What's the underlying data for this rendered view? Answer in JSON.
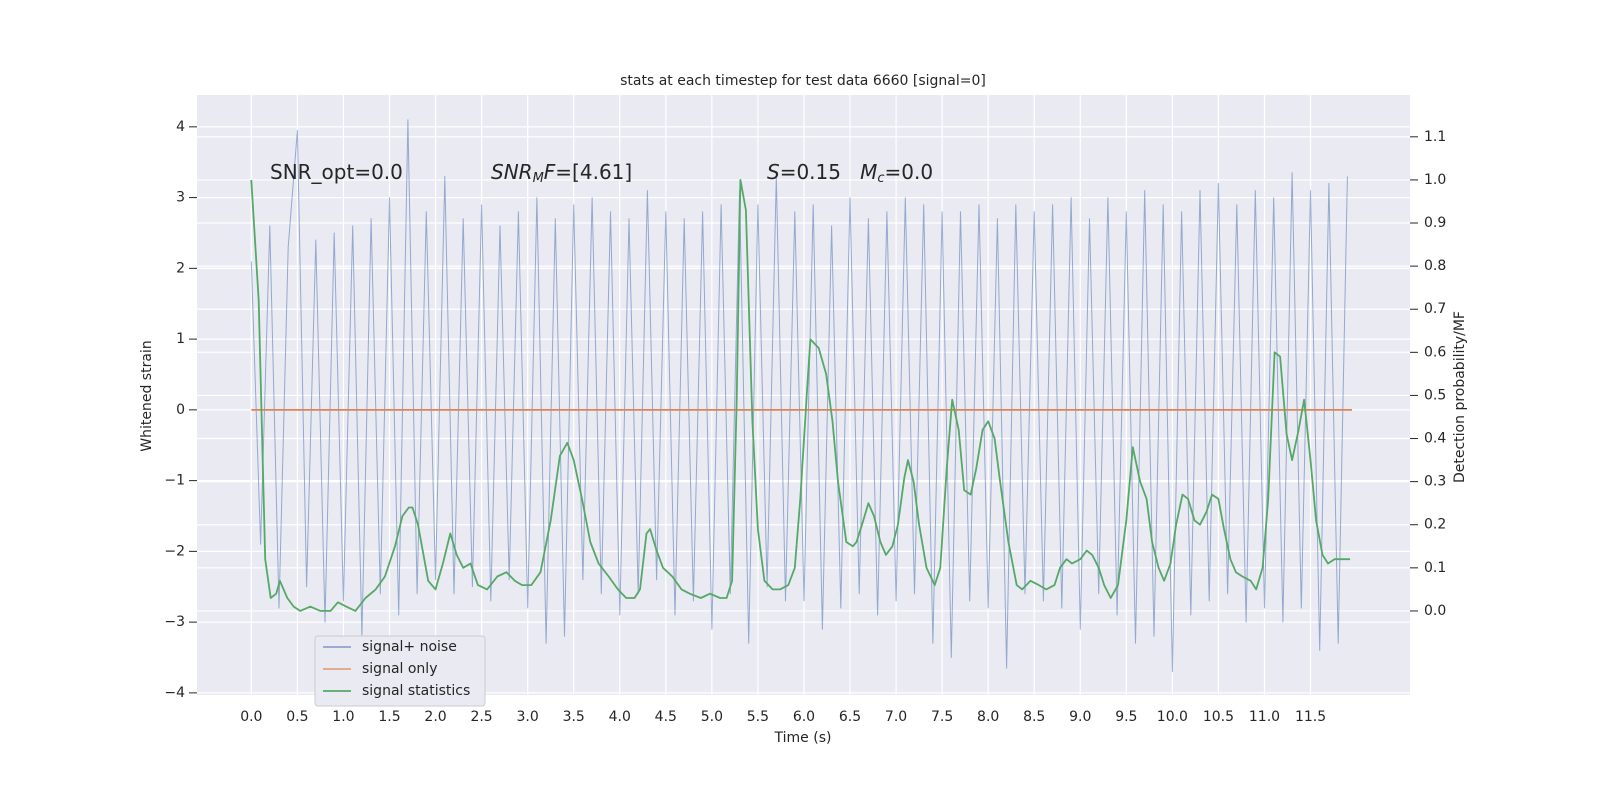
{
  "chart_data": {
    "type": "line",
    "title": "stats at each timestep for test data 6660 [signal=0]",
    "xlabel": "Time (s)",
    "ylabel": "Whitened strain",
    "y2label": "Detection probability/MF",
    "annotations": [
      [
        {
          "text": "SNR_opt=0.0",
          "style": "normal"
        }
      ],
      [
        {
          "text": "SNR",
          "style": "italic"
        },
        {
          "text": "M",
          "style": "italic-sub"
        },
        {
          "text": "F",
          "style": "italic"
        },
        {
          "text": "=[4.61]",
          "style": "normal"
        }
      ],
      [
        {
          "text": "S",
          "style": "italic"
        },
        {
          "text": "=0.15   ",
          "style": "normal"
        },
        {
          "text": "M",
          "style": "italic"
        },
        {
          "text": "c",
          "style": "italic-sub"
        },
        {
          "text": "=0.0",
          "style": "normal"
        }
      ]
    ],
    "xlim": [
      -0.59,
      12.58
    ],
    "ylim": [
      -4.03,
      4.45
    ],
    "y2lim": [
      -0.195,
      1.197
    ],
    "xticks": [
      {
        "value": 0,
        "label": "0.0"
      },
      0.5,
      {
        "value": 1,
        "label": "1.0"
      },
      1.5,
      {
        "value": 2,
        "label": "2.0"
      },
      2.5,
      {
        "value": 3,
        "label": "3.0"
      },
      3.5,
      {
        "value": 4,
        "label": "4.0"
      },
      4.5,
      {
        "value": 5,
        "label": "5.0"
      },
      5.5,
      {
        "value": 6,
        "label": "6.0"
      },
      6.5,
      {
        "value": 7,
        "label": "7.0"
      },
      7.5,
      {
        "value": 8,
        "label": "8.0"
      },
      8.5,
      {
        "value": 9,
        "label": "9.0"
      },
      9.5,
      {
        "value": 10,
        "label": "10.0"
      },
      10.5,
      {
        "value": 11,
        "label": "11.0"
      },
      11.5
    ],
    "yticks": [
      {
        "value": -4,
        "label": "−4"
      },
      {
        "value": -3,
        "label": "−3"
      },
      {
        "value": -2,
        "label": "−2"
      },
      {
        "value": -1,
        "label": "−1"
      },
      0,
      1,
      2,
      3,
      4
    ],
    "y2ticks": [
      {
        "value": 0,
        "label": "0.0"
      },
      0.1,
      0.2,
      0.3,
      0.4,
      0.5,
      0.6,
      0.7,
      0.8,
      0.9,
      {
        "value": 1,
        "label": "1.0"
      },
      1.1
    ],
    "grid": true,
    "legend": "lower left",
    "series": [
      {
        "name": "signal+ noise",
        "color": "#4c72b0",
        "x": [
          0,
          0.1,
          0.2,
          0.3,
          0.4,
          0.5,
          0.6,
          0.7,
          0.8,
          0.9,
          1,
          1.1,
          1.2,
          1.3,
          1.4,
          1.5,
          1.6,
          1.7,
          1.8,
          1.9,
          2,
          2.1,
          2.2,
          2.3,
          2.4,
          2.5,
          2.6,
          2.7,
          2.8,
          2.9,
          3,
          3.1,
          3.2,
          3.3,
          3.4,
          3.5,
          3.6,
          3.7,
          3.8,
          3.9,
          4,
          4.1,
          4.2,
          4.3,
          4.4,
          4.5,
          4.6,
          4.7,
          4.8,
          4.9,
          5,
          5.1,
          5.2,
          5.3,
          5.4,
          5.5,
          5.6,
          5.7,
          5.8,
          5.9,
          6,
          6.1,
          6.2,
          6.3,
          6.4,
          6.5,
          6.6,
          6.7,
          6.8,
          6.9,
          7,
          7.1,
          7.2,
          7.3,
          7.4,
          7.5,
          7.6,
          7.7,
          7.8,
          7.9,
          8,
          8.1,
          8.2,
          8.3,
          8.4,
          8.5,
          8.6,
          8.7,
          8.8,
          8.9,
          9,
          9.1,
          9.2,
          9.3,
          9.4,
          9.5,
          9.6,
          9.7,
          9.8,
          9.9,
          10,
          10.1,
          10.2,
          10.3,
          10.4,
          10.5,
          10.6,
          10.7,
          10.8,
          10.9,
          11,
          11.1,
          11.2,
          11.3,
          11.4,
          11.5,
          11.6,
          11.7,
          11.8,
          11.9
        ],
        "values": [
          2.1,
          -1.9,
          2.6,
          -2.8,
          2.3,
          3.95,
          -2.5,
          2.4,
          -3.0,
          2.5,
          -2.7,
          2.6,
          -3.2,
          2.7,
          -2.6,
          3.0,
          -2.9,
          4.1,
          -2.6,
          2.8,
          -2.4,
          3.3,
          -2.6,
          2.7,
          -2.5,
          2.9,
          -2.7,
          2.6,
          -2.4,
          2.8,
          -2.8,
          3.0,
          -3.3,
          2.7,
          -3.2,
          2.9,
          -2.4,
          3.0,
          -2.6,
          2.8,
          -2.9,
          2.7,
          -2.6,
          3.1,
          -2.4,
          2.8,
          -2.9,
          2.7,
          -2.7,
          2.8,
          -3.1,
          2.9,
          -2.6,
          3.1,
          -3.3,
          2.9,
          -2.5,
          3.3,
          -2.7,
          2.8,
          -2.7,
          2.9,
          -3.1,
          2.6,
          -2.8,
          3.0,
          -2.6,
          2.7,
          -2.9,
          2.8,
          -2.7,
          3.0,
          -2.6,
          2.9,
          -3.3,
          2.8,
          -3.5,
          2.8,
          -2.7,
          2.9,
          -2.8,
          2.7,
          -3.65,
          2.9,
          -2.6,
          2.8,
          -2.7,
          2.9,
          -2.8,
          3.0,
          -3.1,
          2.7,
          -2.6,
          3.0,
          -2.9,
          2.8,
          -3.3,
          3.1,
          -3.2,
          2.9,
          -3.7,
          2.8,
          -2.9,
          3.1,
          -2.7,
          3.2,
          -2.6,
          2.9,
          -3.0,
          3.1,
          -2.8,
          3.0,
          -3.0,
          3.35,
          -2.8,
          3.1,
          -3.4,
          3.2,
          -3.3,
          3.3
        ]
      },
      {
        "name": "signal only",
        "color": "#dd8452",
        "x": [
          0,
          11.95
        ],
        "values": [
          0,
          0
        ]
      },
      {
        "name": "signal statistics",
        "color": "#55a868",
        "axis": "y2",
        "x": [
          0,
          0.08,
          0.15,
          0.21,
          0.27,
          0.31,
          0.39,
          0.46,
          0.53,
          0.64,
          0.75,
          0.86,
          0.94,
          1.03,
          1.13,
          1.24,
          1.35,
          1.45,
          1.56,
          1.64,
          1.71,
          1.75,
          1.81,
          1.92,
          2.0,
          2.08,
          2.16,
          2.23,
          2.3,
          2.38,
          2.46,
          2.56,
          2.67,
          2.77,
          2.86,
          2.94,
          3.04,
          3.14,
          3.25,
          3.35,
          3.43,
          3.5,
          3.59,
          3.68,
          3.77,
          3.88,
          3.98,
          4.07,
          4.16,
          4.22,
          4.29,
          4.33,
          4.4,
          4.47,
          4.57,
          4.67,
          4.76,
          4.88,
          4.98,
          5.09,
          5.16,
          5.22,
          5.27,
          5.31,
          5.37,
          5.44,
          5.5,
          5.57,
          5.66,
          5.74,
          5.83,
          5.9,
          5.96,
          6.03,
          6.07,
          6.16,
          6.24,
          6.31,
          6.37,
          6.46,
          6.53,
          6.57,
          6.63,
          6.7,
          6.76,
          6.83,
          6.89,
          6.96,
          7.02,
          7.09,
          7.13,
          7.19,
          7.25,
          7.33,
          7.42,
          7.48,
          7.55,
          7.61,
          7.68,
          7.74,
          7.81,
          7.87,
          7.94,
          8.0,
          8.07,
          8.13,
          8.22,
          8.31,
          8.37,
          8.46,
          8.55,
          8.63,
          8.72,
          8.78,
          8.85,
          8.91,
          9.0,
          9.07,
          9.13,
          9.2,
          9.26,
          9.33,
          9.41,
          9.5,
          9.57,
          9.65,
          9.72,
          9.78,
          9.85,
          9.91,
          9.98,
          10.04,
          10.11,
          10.17,
          10.24,
          10.3,
          10.37,
          10.43,
          10.5,
          10.56,
          10.63,
          10.69,
          10.76,
          10.85,
          10.91,
          10.98,
          11.04,
          11.11,
          11.17,
          11.24,
          11.3,
          11.37,
          11.43,
          11.5,
          11.56,
          11.63,
          11.69,
          11.76,
          11.85,
          11.93
        ],
        "values": [
          1.0,
          0.72,
          0.12,
          0.03,
          0.04,
          0.07,
          0.03,
          0.01,
          0.0,
          0.01,
          0.0,
          0.0,
          0.02,
          0.01,
          0.0,
          0.03,
          0.05,
          0.08,
          0.15,
          0.22,
          0.24,
          0.24,
          0.2,
          0.07,
          0.05,
          0.11,
          0.18,
          0.13,
          0.1,
          0.11,
          0.06,
          0.05,
          0.08,
          0.09,
          0.07,
          0.06,
          0.06,
          0.09,
          0.21,
          0.36,
          0.39,
          0.35,
          0.26,
          0.16,
          0.11,
          0.08,
          0.05,
          0.03,
          0.03,
          0.05,
          0.18,
          0.19,
          0.14,
          0.1,
          0.08,
          0.05,
          0.04,
          0.03,
          0.04,
          0.03,
          0.03,
          0.07,
          0.49,
          1.0,
          0.93,
          0.44,
          0.19,
          0.07,
          0.05,
          0.05,
          0.06,
          0.1,
          0.26,
          0.5,
          0.63,
          0.61,
          0.55,
          0.44,
          0.3,
          0.16,
          0.15,
          0.16,
          0.2,
          0.25,
          0.22,
          0.16,
          0.13,
          0.15,
          0.2,
          0.31,
          0.35,
          0.3,
          0.2,
          0.1,
          0.06,
          0.1,
          0.33,
          0.49,
          0.42,
          0.28,
          0.27,
          0.33,
          0.42,
          0.44,
          0.4,
          0.3,
          0.16,
          0.06,
          0.05,
          0.07,
          0.06,
          0.05,
          0.06,
          0.1,
          0.12,
          0.11,
          0.12,
          0.14,
          0.13,
          0.1,
          0.06,
          0.03,
          0.06,
          0.21,
          0.38,
          0.3,
          0.26,
          0.16,
          0.1,
          0.07,
          0.11,
          0.2,
          0.27,
          0.26,
          0.21,
          0.2,
          0.23,
          0.27,
          0.26,
          0.19,
          0.12,
          0.09,
          0.08,
          0.07,
          0.05,
          0.1,
          0.26,
          0.6,
          0.59,
          0.41,
          0.35,
          0.42,
          0.49,
          0.35,
          0.21,
          0.13,
          0.11,
          0.12,
          0.12,
          0.12
        ]
      }
    ]
  }
}
